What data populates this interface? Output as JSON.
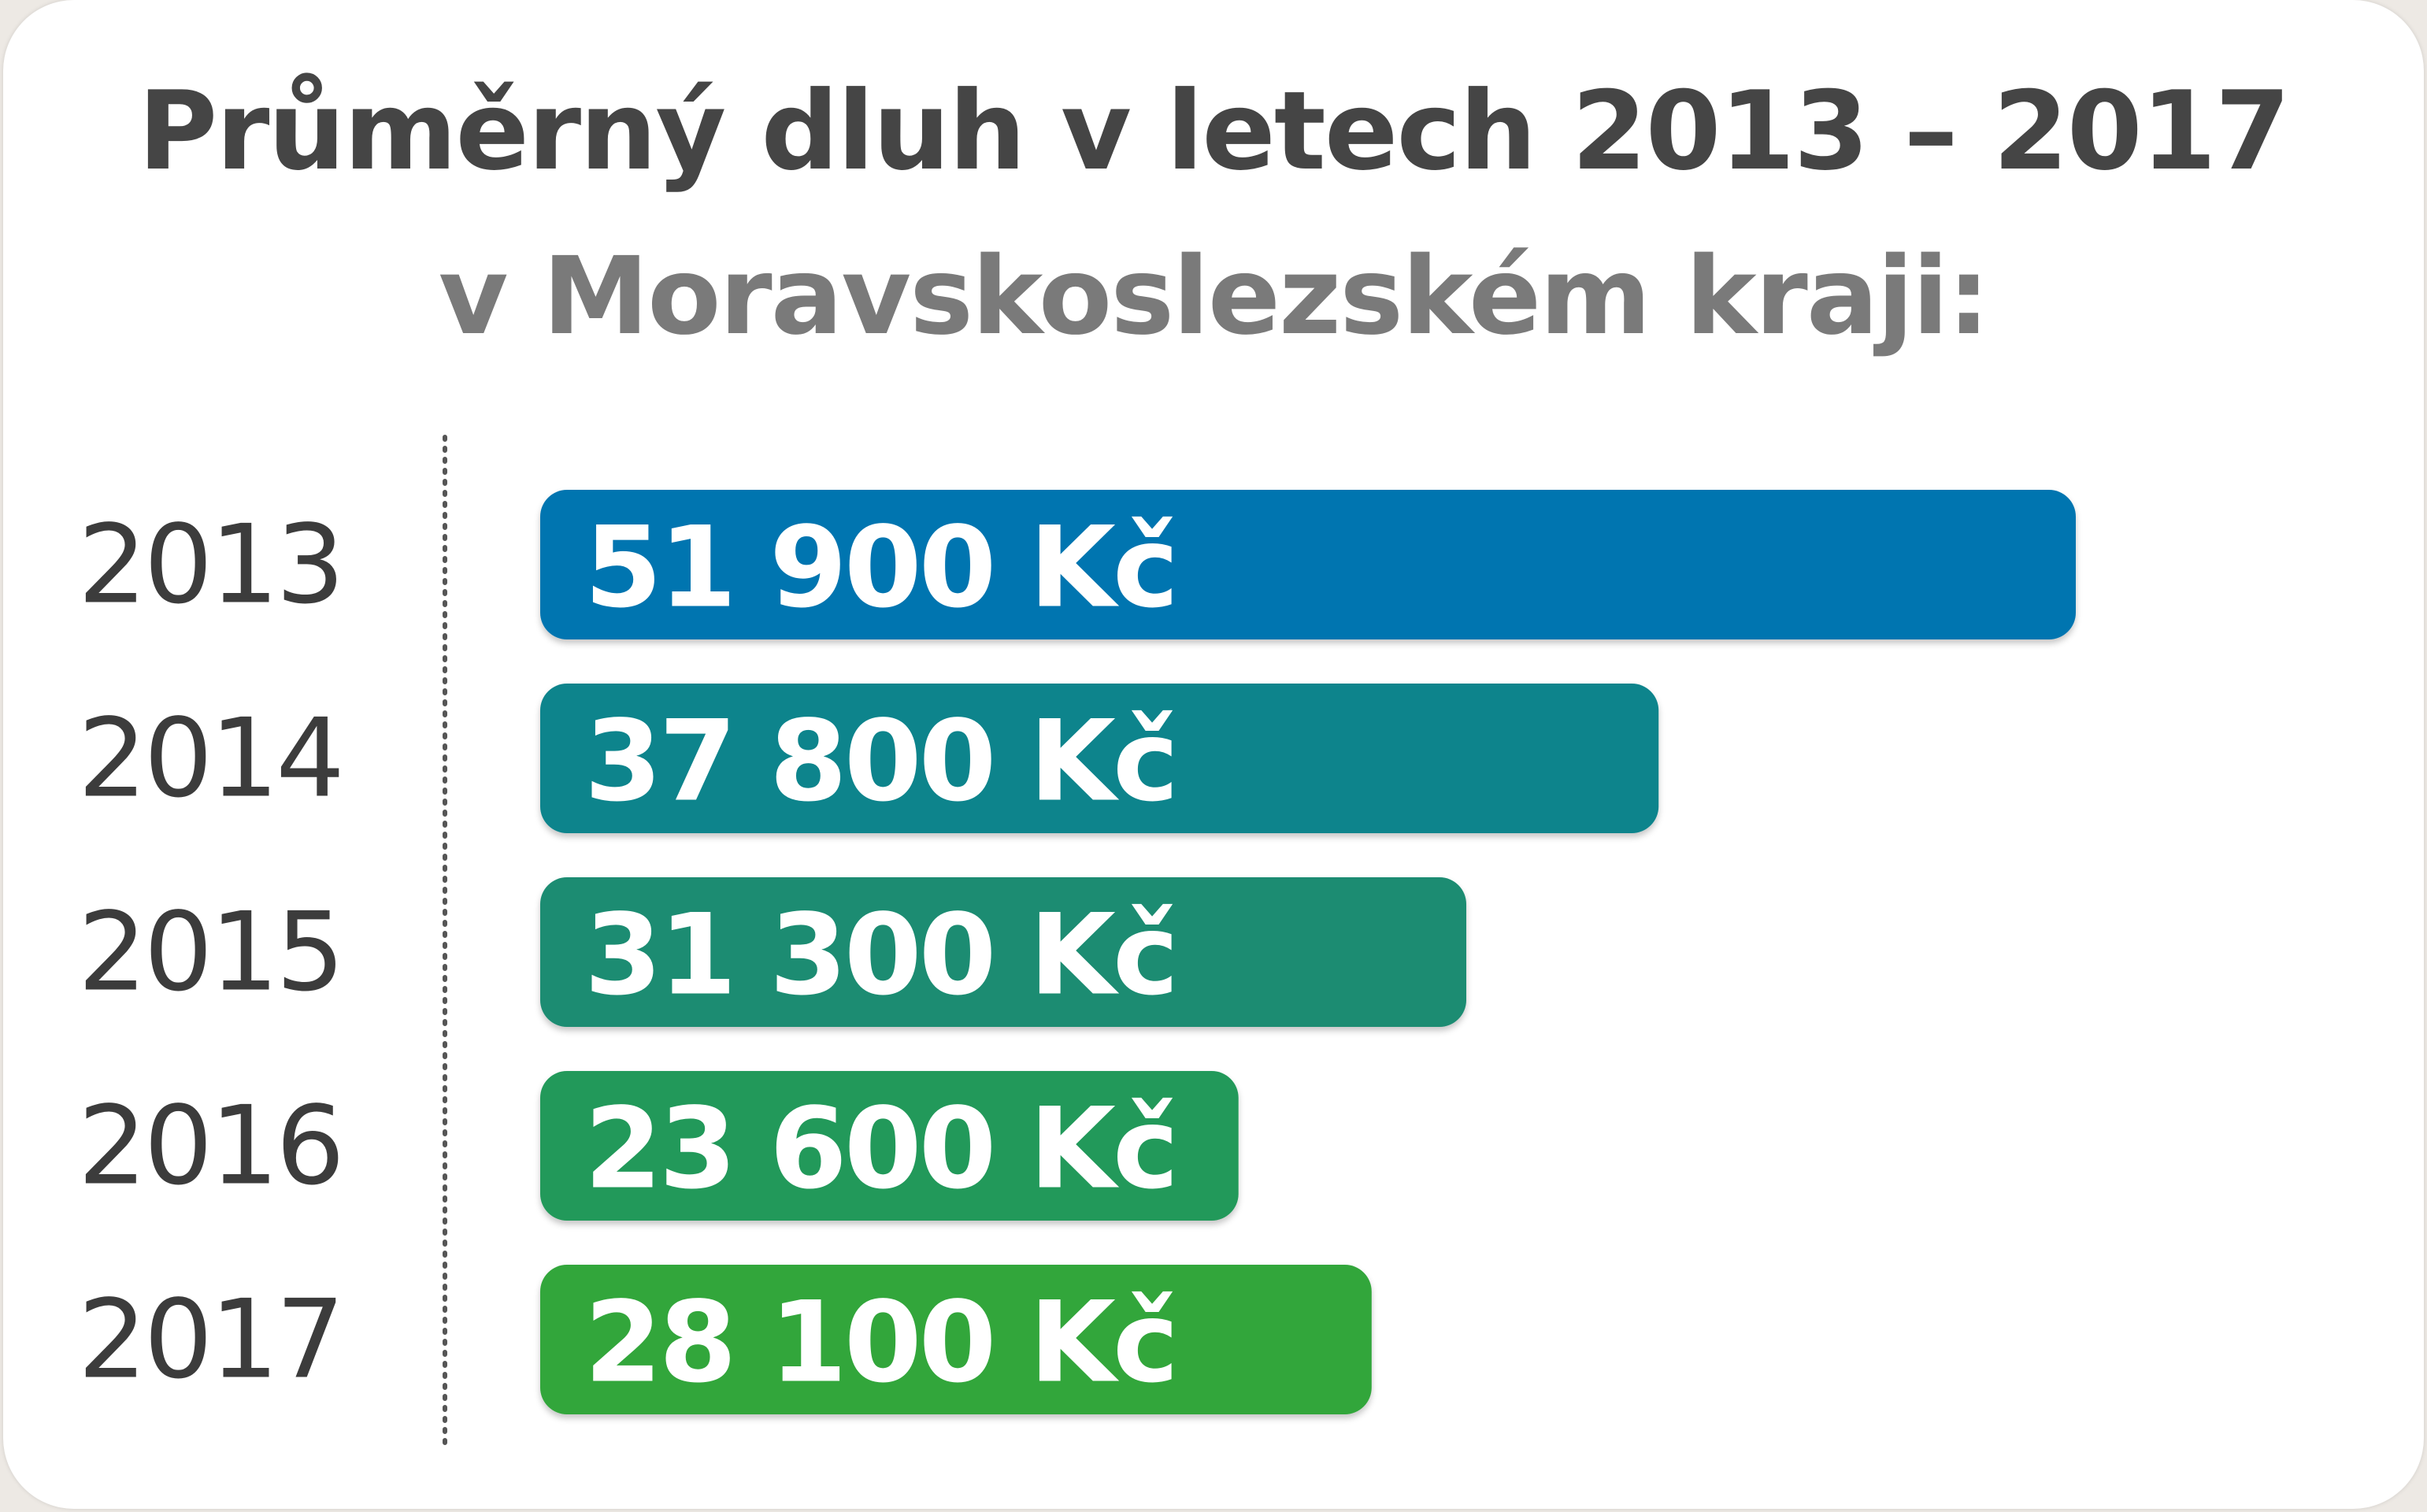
{
  "title": "Průměrný dluh v letech 2013 – 2017",
  "subtitle": "v Moravskoslezském kraji:",
  "chart_data": {
    "type": "bar",
    "orientation": "horizontal",
    "categories": [
      "2013",
      "2014",
      "2015",
      "2016",
      "2017"
    ],
    "values": [
      51900,
      37800,
      31300,
      23600,
      28100
    ],
    "value_labels": [
      "51 900 Kč",
      "37 800 Kč",
      "31 300 Kč",
      "23 600 Kč",
      "28 100 Kč"
    ],
    "bar_colors": [
      "#0275b0",
      "#10848c",
      "#1b8c72",
      "#22995a",
      "#31a63b"
    ],
    "unit": "Kč",
    "xlim": [
      0,
      51900
    ],
    "grid": false,
    "axis_line": "dotted"
  }
}
